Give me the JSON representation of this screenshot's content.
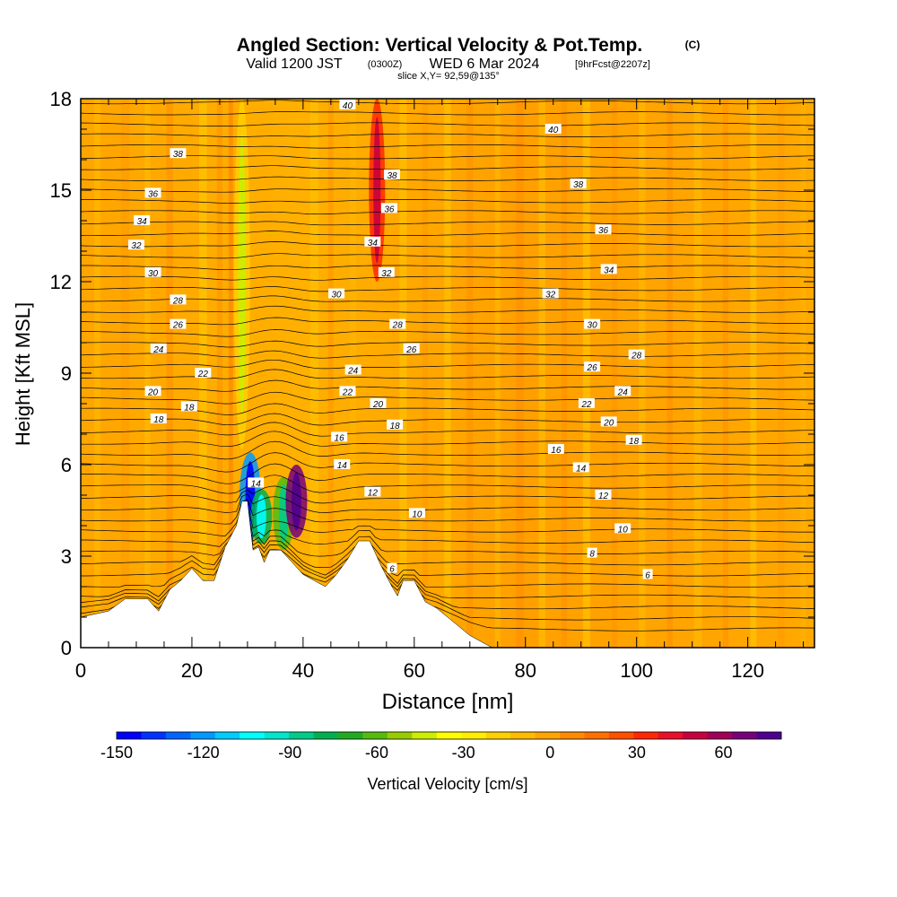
{
  "chart_data": {
    "type": "heatmap",
    "title": "Angled Section: Vertical Velocity & Pot.Temp.",
    "title_unit": "(C)",
    "subtitle": {
      "valid": "Valid 1200 JST",
      "utc": "(0300Z)",
      "date": "WED 6 Mar 2024",
      "forecast": "[9hrFcst@2207z]",
      "slice": "slice X,Y= 92,59@135°"
    },
    "xlabel": "Distance [nm]",
    "ylabel": "Height [Kft MSL]",
    "xlim": [
      0,
      132
    ],
    "ylim": [
      0,
      18
    ],
    "x_ticks": [
      0,
      20,
      40,
      60,
      80,
      100,
      120
    ],
    "y_ticks": [
      0,
      3,
      6,
      9,
      12,
      15,
      18
    ],
    "colorbar": {
      "label": "Vertical Velocity [cm/s]",
      "range": [
        -150,
        80
      ],
      "tick_values": [
        -150,
        -120,
        -90,
        -60,
        -30,
        0,
        30,
        60
      ],
      "colors": [
        "#0000ff",
        "#0033ff",
        "#0066ff",
        "#0099ff",
        "#00ccff",
        "#00ffff",
        "#00e6cc",
        "#00cc88",
        "#00b050",
        "#22aa22",
        "#55bb11",
        "#99cc00",
        "#ccee00",
        "#ffff00",
        "#ffee00",
        "#ffd000",
        "#ffbb00",
        "#ffa500",
        "#ff8c00",
        "#ff7000",
        "#ff5000",
        "#ff2800",
        "#e8102a",
        "#c80040",
        "#a0005a",
        "#78007a",
        "#500090"
      ]
    },
    "terrain": {
      "x": [
        0,
        5,
        8,
        12,
        14,
        16,
        18,
        20,
        22,
        24,
        26,
        28,
        29,
        30,
        31,
        32,
        33,
        34,
        36,
        38,
        40,
        42,
        44,
        46,
        48,
        50,
        52,
        54,
        56,
        57,
        58,
        60,
        62,
        64,
        66,
        68,
        70,
        72,
        74,
        132
      ],
      "y": [
        1.0,
        1.2,
        1.6,
        1.6,
        1.2,
        1.9,
        2.2,
        2.6,
        2.2,
        2.2,
        3.3,
        4.0,
        4.8,
        4.8,
        3.2,
        3.3,
        2.8,
        3.2,
        3.2,
        2.8,
        2.4,
        2.2,
        2.0,
        2.4,
        2.9,
        3.5,
        3.5,
        2.7,
        2.0,
        1.7,
        2.2,
        2.2,
        1.5,
        1.3,
        1.0,
        0.7,
        0.4,
        0.2,
        0.0,
        0.0
      ]
    },
    "updrafts": [
      {
        "x": 30.5,
        "top": 6.4,
        "bottom": 3.5,
        "value": -120
      },
      {
        "x": 32.5,
        "top": 5.2,
        "bottom": 3.4,
        "value": -75
      },
      {
        "x": 36.5,
        "top": 5.6,
        "bottom": 3.2,
        "value": -60
      },
      {
        "x": 38.8,
        "top": 6.0,
        "bottom": 3.6,
        "value": 70
      },
      {
        "x": 53.3,
        "top": 18.0,
        "bottom": 12.0,
        "value": 35
      },
      {
        "x": 29.0,
        "top": 18.0,
        "bottom": 6.5,
        "value": -20
      }
    ],
    "contours": {
      "series": [
        {
          "name": "40",
          "labels": [
            {
              "x": 48.0,
              "y": 17.8,
              "text": "40"
            },
            {
              "x": 85.0,
              "y": 17.0,
              "text": "40"
            }
          ]
        },
        {
          "name": "38",
          "labels": [
            {
              "x": 17.5,
              "y": 16.2,
              "text": "38"
            },
            {
              "x": 56.0,
              "y": 15.5,
              "text": "38"
            },
            {
              "x": 89.5,
              "y": 15.2,
              "text": "38"
            }
          ]
        },
        {
          "name": "36",
          "labels": [
            {
              "x": 13.0,
              "y": 14.9,
              "text": "36"
            },
            {
              "x": 55.5,
              "y": 14.4,
              "text": "36"
            },
            {
              "x": 94.0,
              "y": 13.7,
              "text": "36"
            }
          ]
        },
        {
          "name": "34",
          "labels": [
            {
              "x": 11.0,
              "y": 14.0,
              "text": "34"
            },
            {
              "x": 52.5,
              "y": 13.3,
              "text": "34"
            },
            {
              "x": 95.0,
              "y": 12.4,
              "text": "34"
            }
          ]
        },
        {
          "name": "32",
          "labels": [
            {
              "x": 10.0,
              "y": 13.2,
              "text": "32"
            },
            {
              "x": 55.0,
              "y": 12.3,
              "text": "32"
            },
            {
              "x": 84.5,
              "y": 11.6,
              "text": "32"
            }
          ]
        },
        {
          "name": "30",
          "labels": [
            {
              "x": 13.0,
              "y": 12.3,
              "text": "30"
            },
            {
              "x": 46.0,
              "y": 11.6,
              "text": "30"
            },
            {
              "x": 92.0,
              "y": 10.6,
              "text": "30"
            }
          ]
        },
        {
          "name": "28",
          "labels": [
            {
              "x": 17.5,
              "y": 11.4,
              "text": "28"
            },
            {
              "x": 57.0,
              "y": 10.6,
              "text": "28"
            },
            {
              "x": 100.0,
              "y": 9.6,
              "text": "28"
            }
          ]
        },
        {
          "name": "26",
          "labels": [
            {
              "x": 17.5,
              "y": 10.6,
              "text": "26"
            },
            {
              "x": 59.5,
              "y": 9.8,
              "text": "26"
            },
            {
              "x": 92.0,
              "y": 9.2,
              "text": "26"
            }
          ]
        },
        {
          "name": "24",
          "labels": [
            {
              "x": 14.0,
              "y": 9.8,
              "text": "24"
            },
            {
              "x": 49.0,
              "y": 9.1,
              "text": "24"
            },
            {
              "x": 97.5,
              "y": 8.4,
              "text": "24"
            }
          ]
        },
        {
          "name": "22",
          "labels": [
            {
              "x": 22.0,
              "y": 9.0,
              "text": "22"
            },
            {
              "x": 48.0,
              "y": 8.4,
              "text": "22"
            },
            {
              "x": 91.0,
              "y": 8.0,
              "text": "22"
            }
          ]
        },
        {
          "name": "20",
          "labels": [
            {
              "x": 13.0,
              "y": 8.4,
              "text": "20"
            },
            {
              "x": 53.5,
              "y": 8.0,
              "text": "20"
            },
            {
              "x": 95.0,
              "y": 7.4,
              "text": "20"
            }
          ]
        },
        {
          "name": "18",
          "labels": [
            {
              "x": 14.0,
              "y": 7.5,
              "text": "18"
            },
            {
              "x": 19.5,
              "y": 7.9,
              "text": "18"
            },
            {
              "x": 56.5,
              "y": 7.3,
              "text": "18"
            },
            {
              "x": 99.5,
              "y": 6.8,
              "text": "18"
            }
          ]
        },
        {
          "name": "16",
          "labels": [
            {
              "x": 46.5,
              "y": 6.9,
              "text": "16"
            },
            {
              "x": 85.5,
              "y": 6.5,
              "text": "16"
            }
          ]
        },
        {
          "name": "14",
          "labels": [
            {
              "x": 31.5,
              "y": 5.4,
              "text": "14"
            },
            {
              "x": 47.0,
              "y": 6.0,
              "text": "14"
            },
            {
              "x": 90.0,
              "y": 5.9,
              "text": "14"
            }
          ]
        },
        {
          "name": "12",
          "labels": [
            {
              "x": 52.5,
              "y": 5.1,
              "text": "12"
            },
            {
              "x": 94.0,
              "y": 5.0,
              "text": "12"
            }
          ]
        },
        {
          "name": "10",
          "labels": [
            {
              "x": 60.5,
              "y": 4.4,
              "text": "10"
            },
            {
              "x": 97.5,
              "y": 3.9,
              "text": "10"
            }
          ]
        },
        {
          "name": "8",
          "labels": [
            {
              "x": 92.0,
              "y": 3.1,
              "text": "8"
            }
          ]
        },
        {
          "name": "6",
          "labels": [
            {
              "x": 56.0,
              "y": 2.6,
              "text": "6"
            },
            {
              "x": 102.0,
              "y": 2.4,
              "text": "6"
            }
          ]
        }
      ]
    }
  }
}
